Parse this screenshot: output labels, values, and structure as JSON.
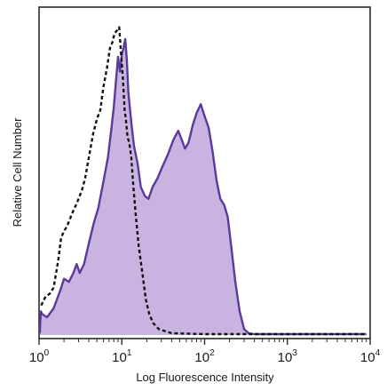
{
  "chart_data": {
    "type": "area",
    "xlabel": "Log Fluorescence Intensity",
    "ylabel": "Relative Cell Number",
    "x_scale": "log",
    "xlim": [
      1,
      10000
    ],
    "ylim": [
      0,
      1
    ],
    "grid": false,
    "legend": "none",
    "x_ticks": [
      {
        "base": "10",
        "exp": "0",
        "value": 1
      },
      {
        "base": "10",
        "exp": "1",
        "value": 10
      },
      {
        "base": "10",
        "exp": "2",
        "value": 100
      },
      {
        "base": "10",
        "exp": "3",
        "value": 1000
      },
      {
        "base": "10",
        "exp": "4",
        "value": 10000
      }
    ],
    "series": [
      {
        "style": "filled-solid",
        "stroke": "#5a3a9a",
        "fill": "#c9b3e0",
        "points": [
          [
            1.02,
            0.005
          ],
          [
            1.05,
            0.08
          ],
          [
            1.1,
            0.07
          ],
          [
            1.25,
            0.06
          ],
          [
            1.5,
            0.09
          ],
          [
            1.8,
            0.15
          ],
          [
            2.0,
            0.19
          ],
          [
            2.3,
            0.18
          ],
          [
            2.6,
            0.21
          ],
          [
            2.85,
            0.24
          ],
          [
            3.1,
            0.21
          ],
          [
            3.5,
            0.24
          ],
          [
            4.0,
            0.31
          ],
          [
            4.6,
            0.38
          ],
          [
            5.2,
            0.43
          ],
          [
            6.0,
            0.52
          ],
          [
            6.8,
            0.6
          ],
          [
            7.5,
            0.7
          ],
          [
            8.0,
            0.77
          ],
          [
            8.5,
            0.86
          ],
          [
            9.0,
            0.94
          ],
          [
            9.5,
            0.89
          ],
          [
            10.0,
            0.95
          ],
          [
            10.5,
            0.97
          ],
          [
            11.0,
            1.0
          ],
          [
            11.5,
            0.93
          ],
          [
            12.0,
            0.82
          ],
          [
            13.0,
            0.72
          ],
          [
            14.0,
            0.64
          ],
          [
            15.5,
            0.58
          ],
          [
            17.0,
            0.5
          ],
          [
            19.0,
            0.47
          ],
          [
            21.0,
            0.46
          ],
          [
            23.5,
            0.5
          ],
          [
            27.0,
            0.53
          ],
          [
            31.0,
            0.57
          ],
          [
            36.0,
            0.61
          ],
          [
            42.0,
            0.66
          ],
          [
            48.0,
            0.69
          ],
          [
            53.0,
            0.66
          ],
          [
            58.0,
            0.63
          ],
          [
            64.0,
            0.65
          ],
          [
            72.0,
            0.71
          ],
          [
            80.0,
            0.75
          ],
          [
            90.0,
            0.78
          ],
          [
            100.0,
            0.74
          ],
          [
            112.0,
            0.7
          ],
          [
            125.0,
            0.62
          ],
          [
            140.0,
            0.52
          ],
          [
            155.0,
            0.46
          ],
          [
            172.0,
            0.44
          ],
          [
            190.0,
            0.4
          ],
          [
            210.0,
            0.3
          ],
          [
            235.0,
            0.18
          ],
          [
            265.0,
            0.08
          ],
          [
            300.0,
            0.02
          ],
          [
            340.0,
            0.006
          ],
          [
            400.0,
            0.003
          ],
          [
            1000.0,
            0.003
          ],
          [
            9000.0,
            0.003
          ]
        ]
      },
      {
        "style": "dashed",
        "stroke": "#111111",
        "points": [
          [
            1.06,
            0.1
          ],
          [
            1.2,
            0.13
          ],
          [
            1.35,
            0.14
          ],
          [
            1.5,
            0.16
          ],
          [
            1.7,
            0.25
          ],
          [
            1.85,
            0.33
          ],
          [
            2.0,
            0.35
          ],
          [
            2.2,
            0.37
          ],
          [
            2.5,
            0.41
          ],
          [
            2.8,
            0.44
          ],
          [
            3.0,
            0.46
          ],
          [
            3.3,
            0.49
          ],
          [
            3.6,
            0.53
          ],
          [
            4.0,
            0.6
          ],
          [
            4.5,
            0.68
          ],
          [
            5.0,
            0.73
          ],
          [
            5.5,
            0.76
          ],
          [
            6.0,
            0.84
          ],
          [
            6.6,
            0.9
          ],
          [
            7.2,
            0.97
          ],
          [
            7.7,
            0.99
          ],
          [
            8.2,
            1.02
          ],
          [
            8.8,
            1.03
          ],
          [
            9.3,
            1.04
          ],
          [
            9.8,
            0.95
          ],
          [
            10.3,
            0.87
          ],
          [
            10.8,
            0.76
          ],
          [
            11.2,
            0.73
          ],
          [
            11.7,
            0.67
          ],
          [
            12.3,
            0.65
          ],
          [
            13.0,
            0.6
          ],
          [
            13.8,
            0.5
          ],
          [
            14.8,
            0.4
          ],
          [
            16.0,
            0.3
          ],
          [
            17.5,
            0.22
          ],
          [
            19.5,
            0.12
          ],
          [
            21.5,
            0.07
          ],
          [
            24.0,
            0.04
          ],
          [
            28.0,
            0.02
          ],
          [
            40.0,
            0.006
          ],
          [
            100.0,
            0.003
          ],
          [
            9000.0,
            0.003
          ]
        ]
      }
    ]
  }
}
